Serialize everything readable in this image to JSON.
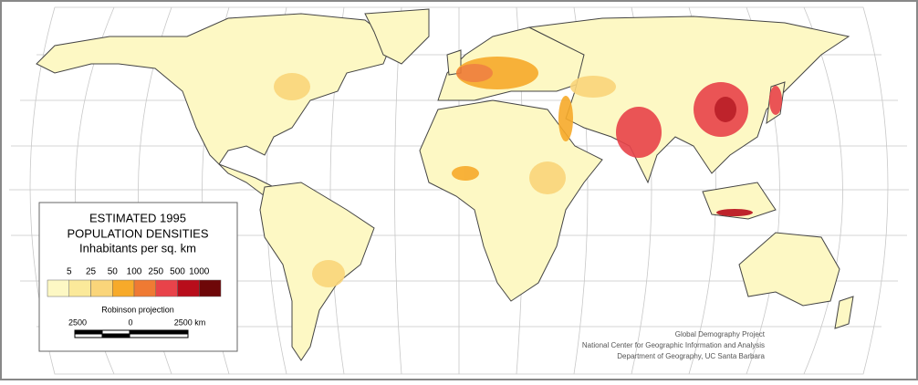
{
  "legend": {
    "title_lines": [
      "ESTIMATED 1995",
      "POPULATION DENSITIES"
    ],
    "subtitle": "Inhabitants per sq. km",
    "thresholds": [
      5,
      25,
      50,
      100,
      250,
      500,
      1000
    ],
    "colors": [
      "#fdf8c4",
      "#fbe99a",
      "#fad57a",
      "#f7aa2a",
      "#ef7a33",
      "#e8434a",
      "#b80d1b",
      "#6e0708"
    ]
  },
  "projection": "Robinson projection",
  "scale_bar": {
    "labels": [
      "2500",
      "0",
      "2500 km"
    ]
  },
  "credits": [
    "Global Demography Project",
    "National Center for Geographic Information and Analysis",
    "Department of Geography, UC Santa Barbara"
  ]
}
